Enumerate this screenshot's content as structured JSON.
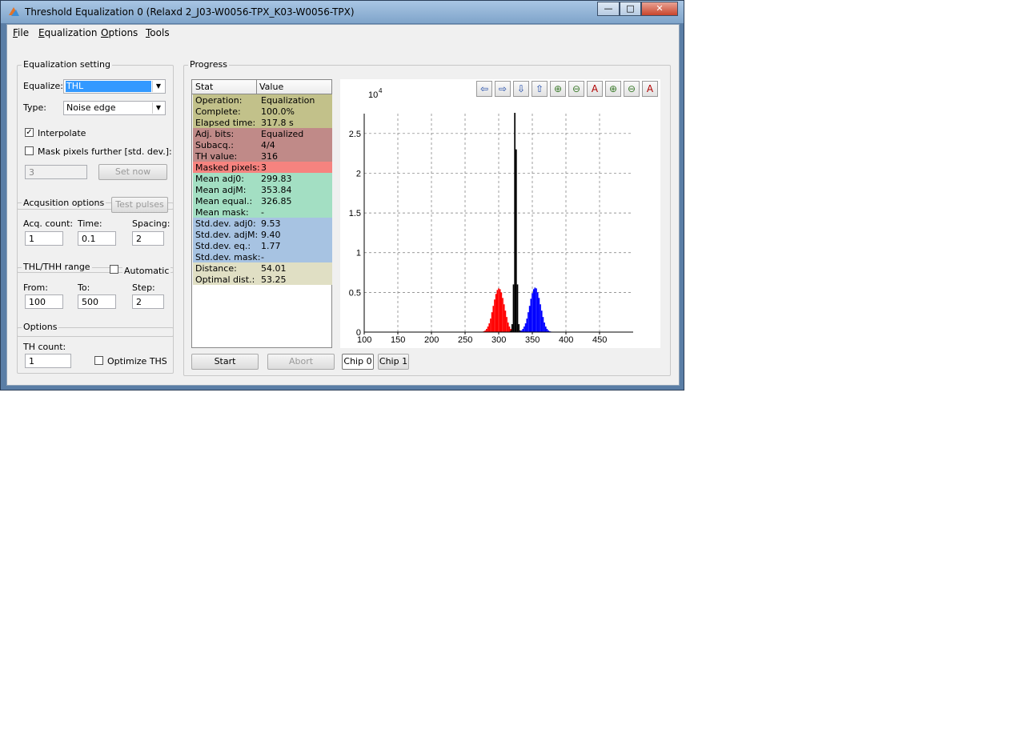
{
  "window": {
    "title": "Threshold Equalization 0 (Relaxd 2_J03-W0056-TPX_K03-W0056-TPX)",
    "controls": {
      "minimize": "—",
      "maximize": "□",
      "close": "✕"
    }
  },
  "menu": [
    {
      "label": "File",
      "accel": "F",
      "rest": "ile"
    },
    {
      "label": "Equalization",
      "accel": "E",
      "rest": "qualization"
    },
    {
      "label": "Options",
      "accel": "O",
      "rest": "ptions"
    },
    {
      "label": "Tools",
      "accel": "T",
      "rest": "ools"
    }
  ],
  "equalization_setting": {
    "title": "Equalization setting",
    "equalize_label": "Equalize:",
    "equalize_value": "THL",
    "type_label": "Type:",
    "type_value": "Noise edge",
    "interpolate_label": "Interpolate",
    "interpolate_checked": true,
    "mask_label": "Mask pixels further [std. dev.]:",
    "mask_checked": false,
    "mask_value": "3",
    "set_now_label": "Set now"
  },
  "acquisition": {
    "title": "Acqusition options",
    "test_pulses_label": "Test pulses",
    "count_label": "Acq. count:",
    "count_value": "1",
    "time_label": "Time:",
    "time_value": "0.1",
    "spacing_label": "Spacing:",
    "spacing_value": "2"
  },
  "range": {
    "title": "THL/THH range",
    "automatic_label": "Automatic",
    "automatic_checked": false,
    "from_label": "From:",
    "from_value": "100",
    "to_label": "To:",
    "to_value": "500",
    "step_label": "Step:",
    "step_value": "2"
  },
  "options": {
    "title": "Options",
    "th_count_label": "TH count:",
    "th_count_value": "1",
    "optimize_label": "Optimize THS",
    "optimize_checked": false
  },
  "progress": {
    "title": "Progress",
    "headers": {
      "stat": "Stat",
      "value": "Value"
    },
    "rows": [
      {
        "stat": "Operation:",
        "value": "Equalization",
        "color": "#c2c18a"
      },
      {
        "stat": "Complete:",
        "value": "100.0%",
        "color": "#c2c18a"
      },
      {
        "stat": "Elapsed time:",
        "value": "317.8 s",
        "color": "#c2c18a"
      },
      {
        "stat": "Adj. bits:",
        "value": "Equalized",
        "color": "#c08a88"
      },
      {
        "stat": "Subacq.:",
        "value": "4/4",
        "color": "#c08a88"
      },
      {
        "stat": "TH value:",
        "value": "316",
        "color": "#c08a88"
      },
      {
        "stat": "Masked pixels:",
        "value": "3",
        "color": "#f6837f"
      },
      {
        "stat": "Mean adj0:",
        "value": "299.83",
        "color": "#a3dfc3"
      },
      {
        "stat": "Mean adjM:",
        "value": "353.84",
        "color": "#a3dfc3"
      },
      {
        "stat": "Mean equal.:",
        "value": "326.85",
        "color": "#a3dfc3"
      },
      {
        "stat": "Mean mask:",
        "value": "-",
        "color": "#a3dfc3"
      },
      {
        "stat": "Std.dev. adj0:",
        "value": "9.53",
        "color": "#a7c3e2"
      },
      {
        "stat": "Std.dev. adjM:",
        "value": "9.40",
        "color": "#a7c3e2"
      },
      {
        "stat": "Std.dev. eq.:",
        "value": "1.77",
        "color": "#a7c3e2"
      },
      {
        "stat": "Std.dev. mask:",
        "value": "-",
        "color": "#a7c3e2"
      },
      {
        "stat": "Distance:",
        "value": "54.01",
        "color": "#e0dfc4"
      },
      {
        "stat": "Optimal dist.:",
        "value": "53.25",
        "color": "#e0dfc4"
      }
    ],
    "start_label": "Start",
    "abort_label": "Abort",
    "chip0_label": "Chip 0",
    "chip1_label": "Chip 1",
    "active_chip": "Chip 0"
  },
  "toolbar_icons": [
    "pan-left-icon",
    "pan-right-icon",
    "pan-down-icon",
    "pan-up-icon",
    "zoom-in-icon",
    "zoom-out-icon",
    "auto-scale-icon",
    "zoom-y-in-icon",
    "zoom-y-out-icon",
    "auto-scale-y-icon"
  ],
  "chart_data": {
    "type": "bar",
    "exponent_label": "10",
    "exponent_power": "4",
    "xlim": [
      100,
      500
    ],
    "ylim": [
      0,
      2.75
    ],
    "x_ticks": [
      100,
      150,
      200,
      250,
      300,
      350,
      400,
      450
    ],
    "y_ticks": [
      0,
      0.5,
      1,
      1.5,
      2,
      2.5
    ],
    "y_tick_labels": [
      "0",
      "0.5",
      "1",
      "1.5",
      "2",
      "2.5"
    ],
    "grid": true,
    "series": [
      {
        "color": "#ff0000",
        "x": [
          276,
          278,
          280,
          282,
          284,
          286,
          288,
          290,
          292,
          294,
          296,
          298,
          300,
          302,
          304,
          306,
          308,
          310,
          312,
          314,
          316,
          318,
          320
        ],
        "values": [
          0.005,
          0.01,
          0.02,
          0.04,
          0.07,
          0.11,
          0.17,
          0.25,
          0.33,
          0.41,
          0.48,
          0.53,
          0.55,
          0.54,
          0.5,
          0.43,
          0.35,
          0.27,
          0.19,
          0.12,
          0.07,
          0.04,
          0.02
        ]
      },
      {
        "color": "#000000",
        "x": [
          318,
          320,
          322,
          324,
          326,
          328,
          330,
          332
        ],
        "values": [
          0.02,
          0.1,
          0.6,
          2.76,
          2.3,
          0.6,
          0.1,
          0.02
        ]
      },
      {
        "color": "#0000ff",
        "x": [
          330,
          332,
          334,
          336,
          338,
          340,
          342,
          344,
          346,
          348,
          350,
          352,
          354,
          356,
          358,
          360,
          362,
          364,
          366,
          368,
          370,
          372,
          374,
          376,
          378,
          380
        ],
        "values": [
          0.005,
          0.01,
          0.02,
          0.04,
          0.07,
          0.11,
          0.17,
          0.25,
          0.33,
          0.42,
          0.49,
          0.54,
          0.56,
          0.55,
          0.5,
          0.43,
          0.35,
          0.27,
          0.19,
          0.12,
          0.07,
          0.04,
          0.02,
          0.01,
          0.006,
          0.003
        ]
      }
    ]
  }
}
